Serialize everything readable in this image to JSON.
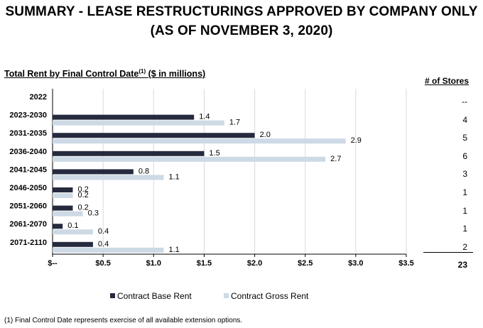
{
  "title_line1": "SUMMARY - LEASE RESTRUCTURINGS APPROVED BY COMPANY ONLY",
  "title_line2": "(AS OF NOVEMBER 3, 2020)",
  "subtitle_main": "Total Rent by Final Control Date",
  "subtitle_sup": "(1)",
  "subtitle_units": "($ in millions)",
  "stores": {
    "header": "# of Stores",
    "values": [
      "--",
      "4",
      "5",
      "6",
      "3",
      "1",
      "1",
      "1",
      "2"
    ],
    "total": "23"
  },
  "legend": {
    "base_label": "Contract Base Rent",
    "gross_label": "Contract Gross Rent"
  },
  "footnote": "(1) Final Control Date represents exercise of all available extension options.",
  "colors": {
    "base": "#252a3e",
    "gross": "#cdd9e5",
    "grid": "#d9d9d9"
  },
  "chart_data": {
    "type": "bar",
    "orientation": "horizontal",
    "categories": [
      "2022",
      "2023-2030",
      "2031-2035",
      "2036-2040",
      "2041-2045",
      "2046-2050",
      "2051-2060",
      "2061-2070",
      "2071-2110"
    ],
    "series": [
      {
        "name": "Contract Base Rent",
        "values": [
          null,
          1.4,
          2.0,
          1.5,
          0.8,
          0.2,
          0.2,
          0.1,
          0.4
        ],
        "labels": [
          "",
          "1.4",
          "2.0",
          "1.5",
          "0.8",
          "0.2",
          "0.2",
          "0.1",
          "0.4"
        ]
      },
      {
        "name": "Contract Gross Rent",
        "values": [
          null,
          1.7,
          2.9,
          2.7,
          1.1,
          0.2,
          0.3,
          0.4,
          1.1
        ],
        "labels": [
          "",
          "1.7",
          "2.9",
          "2.7",
          "1.1",
          "0.2",
          "0.3",
          "0.4",
          "1.1"
        ]
      }
    ],
    "xlim": [
      0,
      3.5
    ],
    "xticks": [
      0,
      0.5,
      1.0,
      1.5,
      2.0,
      2.5,
      3.0,
      3.5
    ],
    "xtick_labels": [
      "$--",
      "$0.5",
      "$1.0",
      "$1.5",
      "$2.0",
      "$2.5",
      "$3.0",
      "$3.5"
    ],
    "title": "Total Rent by Final Control Date (1) ($ in millions)",
    "legend_position": "bottom",
    "grid": true
  }
}
